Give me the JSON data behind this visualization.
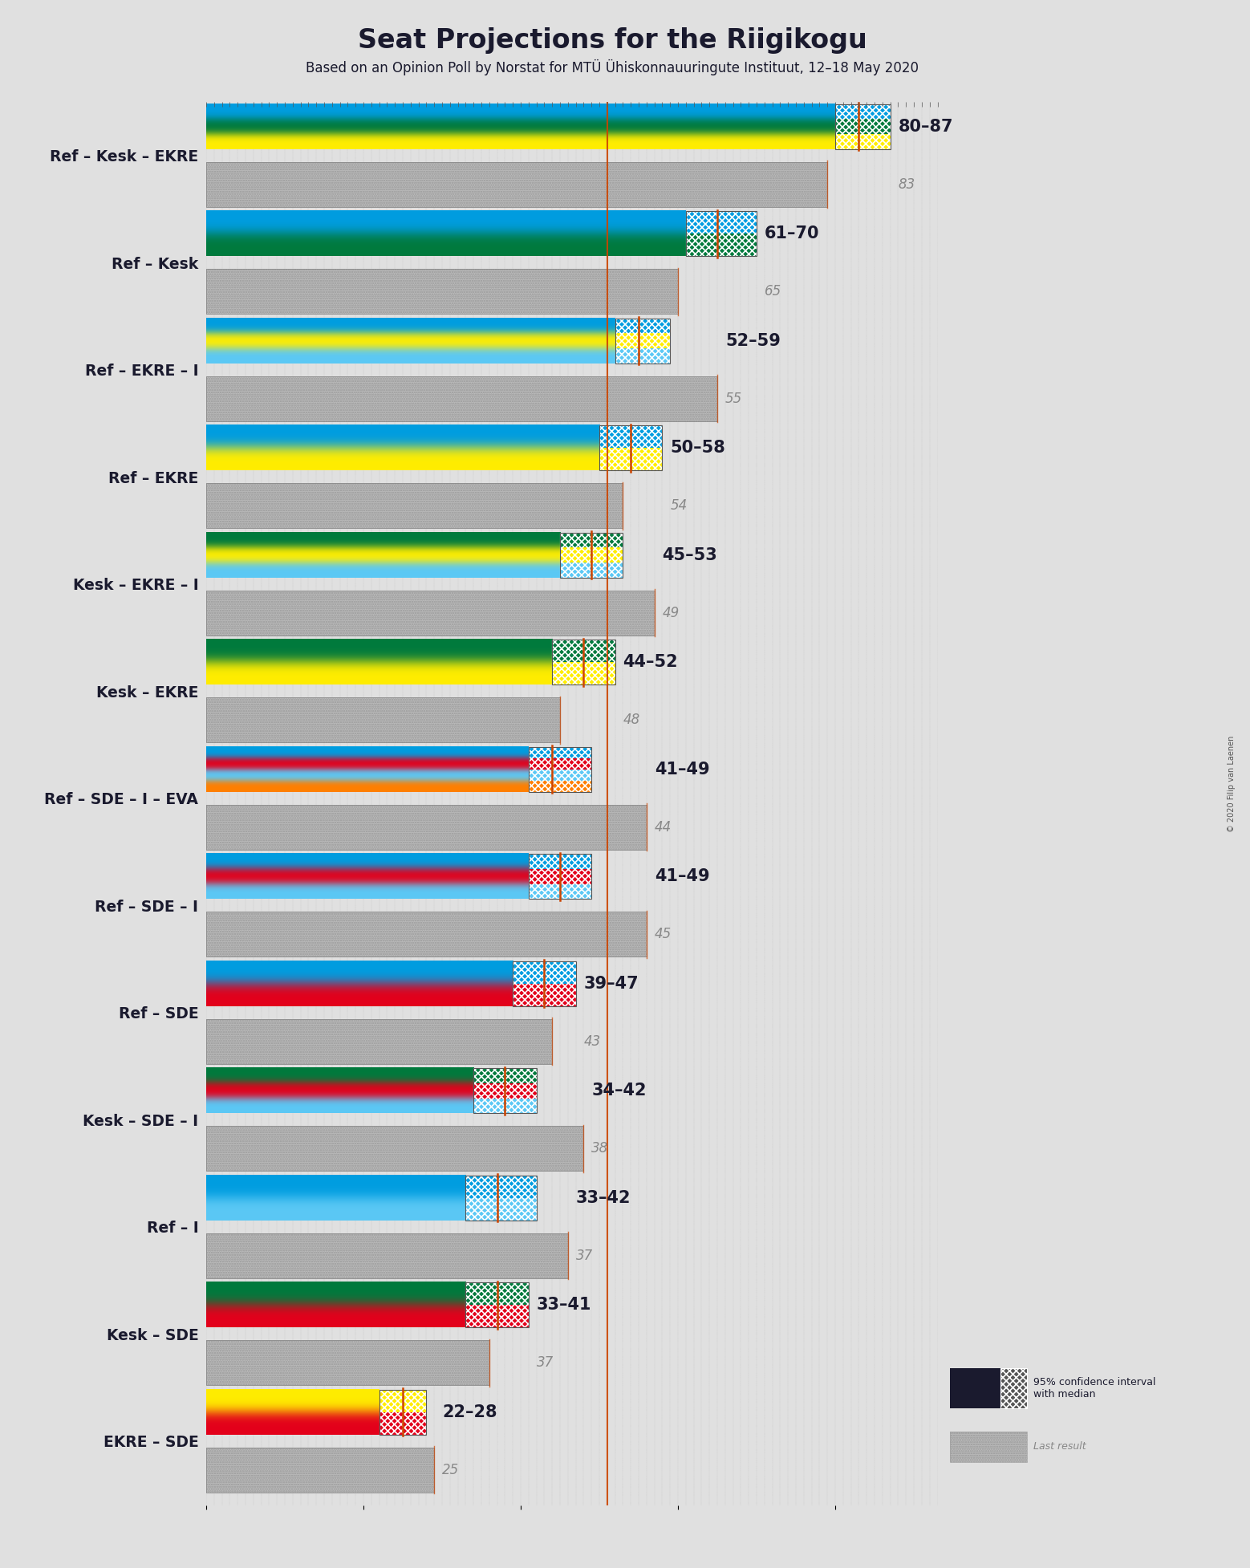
{
  "title": "Seat Projections for the Riigikogu",
  "subtitle": "Based on an Opinion Poll by Norstat for MTÜ Ühiskonnauuringute Instituut, 12–18 May 2020",
  "coalitions": [
    {
      "name": "Ref – Kesk – EKRE",
      "ci_low": 80,
      "ci_high": 87,
      "median": 83,
      "last": 79,
      "underline": false,
      "parties": [
        "Ref",
        "Kesk",
        "EKRE"
      ]
    },
    {
      "name": "Ref – Kesk",
      "ci_low": 61,
      "ci_high": 70,
      "median": 65,
      "last": 60,
      "underline": false,
      "parties": [
        "Ref",
        "Kesk"
      ]
    },
    {
      "name": "Ref – EKRE – I",
      "ci_low": 52,
      "ci_high": 59,
      "median": 55,
      "last": 65,
      "underline": false,
      "parties": [
        "Ref",
        "EKRE",
        "I"
      ]
    },
    {
      "name": "Ref – EKRE",
      "ci_low": 50,
      "ci_high": 58,
      "median": 54,
      "last": 53,
      "underline": false,
      "parties": [
        "Ref",
        "EKRE"
      ]
    },
    {
      "name": "Kesk – EKRE – I",
      "ci_low": 45,
      "ci_high": 53,
      "median": 49,
      "last": 57,
      "underline": true,
      "parties": [
        "Kesk",
        "EKRE",
        "I"
      ]
    },
    {
      "name": "Kesk – EKRE",
      "ci_low": 44,
      "ci_high": 52,
      "median": 48,
      "last": 45,
      "underline": false,
      "parties": [
        "Kesk",
        "EKRE"
      ]
    },
    {
      "name": "Ref – SDE – I – EVA",
      "ci_low": 41,
      "ci_high": 49,
      "median": 44,
      "last": 56,
      "underline": false,
      "parties": [
        "Ref",
        "SDE",
        "I",
        "EVA"
      ]
    },
    {
      "name": "Ref – SDE – I",
      "ci_low": 41,
      "ci_high": 49,
      "median": 45,
      "last": 56,
      "underline": false,
      "parties": [
        "Ref",
        "SDE",
        "I"
      ]
    },
    {
      "name": "Ref – SDE",
      "ci_low": 39,
      "ci_high": 47,
      "median": 43,
      "last": 44,
      "underline": false,
      "parties": [
        "Ref",
        "SDE"
      ]
    },
    {
      "name": "Kesk – SDE – I",
      "ci_low": 34,
      "ci_high": 42,
      "median": 38,
      "last": 48,
      "underline": false,
      "parties": [
        "Kesk",
        "SDE",
        "I"
      ]
    },
    {
      "name": "Ref – I",
      "ci_low": 33,
      "ci_high": 42,
      "median": 37,
      "last": 46,
      "underline": false,
      "parties": [
        "Ref",
        "I"
      ]
    },
    {
      "name": "Kesk – SDE",
      "ci_low": 33,
      "ci_high": 41,
      "median": 37,
      "last": 36,
      "underline": false,
      "parties": [
        "Kesk",
        "SDE"
      ]
    },
    {
      "name": "EKRE – SDE",
      "ci_low": 22,
      "ci_high": 28,
      "median": 25,
      "last": 29,
      "underline": false,
      "parties": [
        "EKRE",
        "SDE"
      ]
    }
  ],
  "party_colors": {
    "Ref": "#009DE0",
    "Kesk": "#007A3D",
    "EKRE": "#FFED00",
    "SDE": "#E3001B",
    "I": "#5BC8F5",
    "EVA": "#FF7F00"
  },
  "majority_line": 51,
  "bg_color": "#E0E0E0",
  "bar_height": 0.42,
  "last_color": "#BBBBBB",
  "dot_color": "#999999"
}
